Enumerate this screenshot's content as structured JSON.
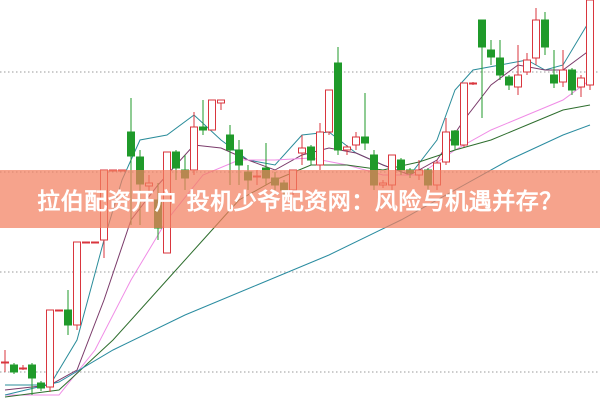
{
  "banner": {
    "title": "拉伯配资开户 投机少爷配资网：风险与机遇并存？"
  },
  "colors": {
    "up": "#d9363e",
    "down": "#1f9a2a",
    "banner": "#f38060",
    "grid": "#9a9a9a",
    "ma5": "#2a8c9a",
    "ma10": "#7a3a6a",
    "ma20": "#f08ce6",
    "ma60": "#2e6e2e",
    "ma120": "#2a8ca0"
  },
  "chart_data": {
    "type": "candlestick",
    "title": "",
    "xlabel": "",
    "ylabel": "",
    "ylim": [
      0,
      40
    ],
    "grid": true,
    "gridlines": [
      32.8,
      22.8,
      12.8,
      2.8
    ],
    "candles_ohlc_note": "[open, high, low, close]",
    "candles": [
      [
        3.8,
        5.0,
        2.8,
        3.8
      ],
      [
        3.5,
        3.7,
        2.6,
        2.8
      ],
      [
        3.2,
        3.5,
        3.0,
        3.2
      ],
      [
        3.5,
        3.7,
        0.5,
        2.2
      ],
      [
        1.7,
        1.9,
        0.9,
        1.2
      ],
      [
        1.3,
        9.0,
        0.8,
        9.0
      ],
      [
        9.0,
        9.0,
        9.0,
        9.0
      ],
      [
        9.0,
        11.0,
        6.5,
        7.5
      ],
      [
        7.5,
        15.8,
        7.0,
        15.8
      ],
      [
        15.8,
        15.8,
        15.8,
        15.8
      ],
      [
        15.8,
        15.8,
        15.8,
        15.8
      ],
      [
        16.0,
        23.0,
        14.2,
        23.0
      ],
      [
        23.0,
        23.0,
        23.0,
        23.0
      ],
      [
        23.0,
        23.0,
        23.0,
        23.0
      ],
      [
        26.8,
        30.2,
        17.5,
        24.4
      ],
      [
        24.3,
        25.0,
        17.5,
        21.6
      ],
      [
        21.4,
        22.5,
        20.8,
        21.7
      ],
      [
        20.0,
        21.7,
        16.0,
        17.2
      ],
      [
        14.7,
        24.8,
        14.7,
        24.8
      ],
      [
        24.8,
        25.0,
        22.0,
        23.2
      ],
      [
        23.0,
        24.5,
        21.0,
        22.2
      ],
      [
        23.0,
        28.8,
        22.5,
        27.3
      ],
      [
        27.3,
        30.0,
        26.5,
        27.0
      ],
      [
        27.0,
        30.0,
        27.0,
        30.0
      ],
      [
        29.7,
        30.0,
        29.0,
        30.0
      ],
      [
        26.5,
        27.5,
        21.5,
        25.0
      ],
      [
        25.0,
        26.0,
        21.5,
        23.5
      ],
      [
        22.8,
        23.5,
        21.0,
        22.0
      ],
      [
        22.3,
        23.0,
        21.5,
        22.4
      ],
      [
        23.2,
        25.7,
        21.5,
        22.2
      ],
      [
        22.2,
        22.8,
        21.0,
        21.5
      ],
      [
        21.7,
        22.0,
        20.5,
        21.0
      ],
      [
        21.0,
        23.0,
        20.5,
        23.0
      ],
      [
        24.7,
        26.5,
        23.5,
        25.2
      ],
      [
        25.3,
        25.5,
        23.5,
        24.0
      ],
      [
        23.5,
        27.7,
        23.0,
        26.8
      ],
      [
        26.8,
        31.0,
        26.5,
        31.0
      ],
      [
        33.7,
        35.3,
        24.5,
        25.0
      ],
      [
        25.0,
        25.5,
        24.5,
        25.3
      ],
      [
        25.5,
        26.8,
        25.0,
        26.3
      ],
      [
        26.3,
        30.7,
        25.0,
        25.7
      ],
      [
        24.5,
        25.0,
        21.0,
        21.5
      ],
      [
        21.5,
        22.0,
        21.2,
        21.7
      ],
      [
        21.5,
        24.5,
        21.0,
        24.5
      ],
      [
        24.0,
        24.2,
        22.5,
        23.0
      ],
      [
        23.0,
        23.2,
        22.2,
        22.7
      ],
      [
        22.5,
        24.0,
        22.0,
        23.0
      ],
      [
        23.0,
        23.2,
        21.0,
        21.5
      ],
      [
        21.5,
        24.0,
        21.0,
        23.7
      ],
      [
        23.8,
        28.2,
        23.5,
        26.8
      ],
      [
        26.9,
        27.0,
        25.0,
        25.5
      ],
      [
        25.5,
        31.7,
        25.3,
        31.7
      ],
      [
        31.7,
        31.8,
        31.5,
        31.7
      ],
      [
        38.0,
        38.0,
        28.2,
        35.3
      ],
      [
        35.0,
        36.0,
        33.5,
        34.3
      ],
      [
        34.2,
        36.0,
        32.0,
        32.5
      ],
      [
        32.3,
        32.5,
        31.0,
        31.5
      ],
      [
        31.3,
        35.5,
        30.5,
        32.5
      ],
      [
        32.8,
        34.7,
        32.5,
        34.0
      ],
      [
        34.2,
        39.2,
        33.5,
        38.0
      ],
      [
        38.0,
        38.8,
        34.5,
        35.3
      ],
      [
        32.5,
        35.0,
        31.2,
        31.7
      ],
      [
        31.8,
        35.0,
        31.3,
        33.0
      ],
      [
        33.0,
        33.2,
        30.5,
        31.0
      ],
      [
        31.3,
        32.5,
        30.3,
        32.2
      ],
      [
        31.5,
        40.0,
        31.0,
        40.0
      ]
    ],
    "moving_averages": [
      {
        "key": "ma5",
        "points": [
          [
            0,
            1.5
          ],
          [
            5,
            1.5
          ],
          [
            8,
            6
          ],
          [
            11,
            16
          ],
          [
            13,
            22
          ],
          [
            15,
            26
          ],
          [
            18,
            26.5
          ],
          [
            21,
            28.5
          ],
          [
            24,
            26
          ],
          [
            27,
            24
          ],
          [
            30,
            23.5
          ],
          [
            33,
            26.5
          ],
          [
            36,
            26.8
          ],
          [
            39,
            24.7
          ],
          [
            42,
            23.5
          ],
          [
            45,
            22.5
          ],
          [
            48,
            26
          ],
          [
            50,
            31
          ],
          [
            52,
            33
          ],
          [
            55,
            33.5
          ],
          [
            58,
            34
          ],
          [
            60,
            33
          ],
          [
            62,
            33.5
          ],
          [
            65,
            38
          ]
        ]
      },
      {
        "key": "ma10",
        "points": [
          [
            0,
            1.0
          ],
          [
            5,
            1.5
          ],
          [
            8,
            3
          ],
          [
            11,
            10
          ],
          [
            14,
            18
          ],
          [
            17,
            21.5
          ],
          [
            21,
            25.5
          ],
          [
            24,
            25.2
          ],
          [
            27,
            24
          ],
          [
            30,
            23
          ],
          [
            33,
            24.5
          ],
          [
            36,
            25.2
          ],
          [
            39,
            24.7
          ],
          [
            42,
            23.5
          ],
          [
            45,
            22.5
          ],
          [
            48,
            24
          ],
          [
            51,
            28
          ],
          [
            54,
            31.5
          ],
          [
            57,
            33.5
          ],
          [
            60,
            33
          ],
          [
            62,
            33
          ],
          [
            65,
            35
          ]
        ]
      },
      {
        "key": "ma20",
        "points": [
          [
            0,
            0.5
          ],
          [
            6,
            0.5
          ],
          [
            10,
            5
          ],
          [
            14,
            12
          ],
          [
            18,
            18
          ],
          [
            22,
            22.5
          ],
          [
            26,
            24
          ],
          [
            30,
            24
          ],
          [
            34,
            24.2
          ],
          [
            38,
            23.5
          ],
          [
            42,
            22.5
          ],
          [
            46,
            22.5
          ],
          [
            50,
            25
          ],
          [
            54,
            27
          ],
          [
            58,
            28.5
          ],
          [
            62,
            30
          ],
          [
            65,
            32
          ]
        ]
      },
      {
        "key": "ma60",
        "points": [
          [
            0,
            0.3
          ],
          [
            6,
            1
          ],
          [
            12,
            6
          ],
          [
            18,
            12
          ],
          [
            22,
            16
          ],
          [
            26,
            20
          ],
          [
            30,
            22
          ],
          [
            34,
            23.5
          ],
          [
            38,
            23.5
          ],
          [
            42,
            23
          ],
          [
            46,
            23.8
          ],
          [
            50,
            25
          ],
          [
            54,
            26
          ],
          [
            58,
            27.5
          ],
          [
            62,
            29
          ],
          [
            65,
            29.5
          ]
        ]
      },
      {
        "key": "ma120",
        "points": [
          [
            0,
            0.5
          ],
          [
            6,
            1.8
          ],
          [
            12,
            5
          ],
          [
            20,
            8.5
          ],
          [
            28,
            11.5
          ],
          [
            36,
            14.5
          ],
          [
            44,
            18
          ],
          [
            50,
            21
          ],
          [
            56,
            24
          ],
          [
            62,
            26.5
          ],
          [
            65,
            27.5
          ]
        ]
      }
    ]
  }
}
